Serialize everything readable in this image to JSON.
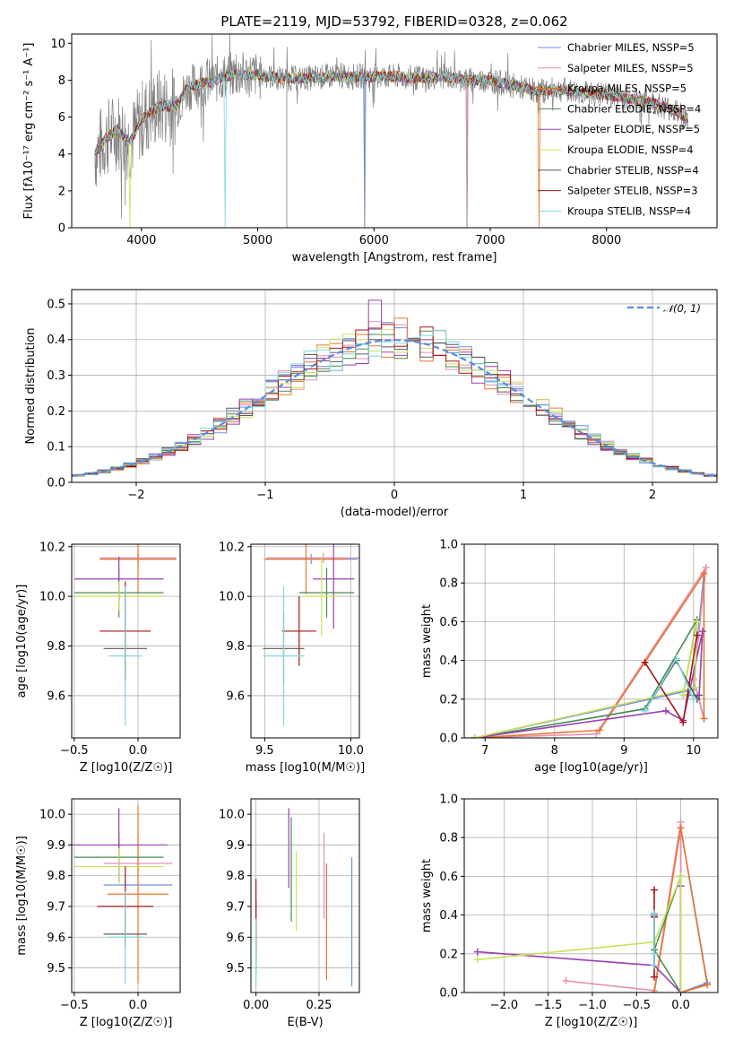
{
  "colors": {
    "Chabrier MILES": "#6b8fe8",
    "Salpeter MILES": "#e58fb6",
    "Kroupa MILES": "#e8772d",
    "Chabrier ELODIE": "#4a8a50",
    "Salpeter ELODIE": "#9a3fb5",
    "Kroupa ELODIE": "#c9e35a",
    "Chabrier STELIB": "#5a5a5a",
    "Salpeter STELIB": "#a51616",
    "Kroupa STELIB": "#7dd7de",
    "data": "#808080",
    "normal": "#5b8bd9"
  },
  "chart_data": [
    {
      "id": "spectrum",
      "type": "line",
      "title": "PLATE=2119, MJD=53792, FIBERID=0328, z=0.062",
      "xlabel": "wavelength [Angstrom, rest frame]",
      "ylabel": "Flux [fλ10⁻¹⁷ erg cm⁻² s⁻¹ A⁻¹]",
      "xlim": [
        3400,
        8950
      ],
      "ylim": [
        0,
        10.5
      ],
      "xticks": [
        "4000",
        "5000",
        "6000",
        "7000",
        "8000"
      ],
      "yticks": [
        "0",
        "2",
        "4",
        "6",
        "8",
        "10"
      ],
      "continuum": [
        [
          3600,
          4.0
        ],
        [
          3700,
          4.9
        ],
        [
          3800,
          5.3
        ],
        [
          3900,
          4.6
        ],
        [
          4000,
          5.9
        ],
        [
          4100,
          6.4
        ],
        [
          4200,
          6.6
        ],
        [
          4300,
          6.6
        ],
        [
          4400,
          7.6
        ],
        [
          4500,
          7.8
        ],
        [
          4600,
          7.9
        ],
        [
          4700,
          8.2
        ],
        [
          4800,
          8.3
        ],
        [
          4900,
          8.3
        ],
        [
          5000,
          8.3
        ],
        [
          5200,
          8.1
        ],
        [
          5400,
          8.1
        ],
        [
          5600,
          8.2
        ],
        [
          5800,
          8.2
        ],
        [
          6000,
          8.2
        ],
        [
          6200,
          8.2
        ],
        [
          6400,
          8.1
        ],
        [
          6600,
          8.2
        ],
        [
          6800,
          8.0
        ],
        [
          7000,
          8.0
        ],
        [
          7200,
          7.7
        ],
        [
          7400,
          7.4
        ],
        [
          7600,
          7.5
        ],
        [
          7800,
          7.3
        ],
        [
          8000,
          7.2
        ],
        [
          8200,
          7.0
        ],
        [
          8400,
          6.8
        ],
        [
          8600,
          6.3
        ],
        [
          8700,
          5.8
        ]
      ],
      "legend": [
        "Chabrier MILES, NSSP=5",
        "Salpeter MILES, NSSP=5",
        "Kroupa MILES, NSSP=5",
        "Chabrier ELODIE, NSSP=4",
        "Salpeter ELODIE, NSSP=5",
        "Kroupa ELODIE, NSSP=4",
        "Chabrier STELIB, NSSP=4",
        "Salpeter STELIB, NSSP=3",
        "Kroupa STELIB, NSSP=4"
      ],
      "legend_position": "right"
    },
    {
      "id": "residuals",
      "type": "line",
      "xlabel": "(data-model)/error",
      "ylabel": "Normed distribution",
      "xlim": [
        -2.5,
        2.5
      ],
      "ylim": [
        0,
        0.54
      ],
      "xticks": [
        "−2",
        "−1",
        "0",
        "1",
        "2"
      ],
      "yticks": [
        "0.0",
        "0.1",
        "0.2",
        "0.3",
        "0.4",
        "0.5"
      ],
      "legend": [
        "𝒩(0, 1)"
      ],
      "legend_position": "upper right",
      "bin_width": 0.1,
      "note_series": "nine step histograms of residuals, one per model",
      "peak_bins": {
        "Salpeter ELODIE": [
          -0.2,
          0.51
        ],
        "Kroupa MILES": [
          0.0,
          0.46
        ],
        "Salpeter MILES": [
          -0.2,
          0.45
        ]
      }
    },
    {
      "id": "age_vs_Z",
      "type": "scatter",
      "xlabel": "Z [log10(Z/Z☉)]",
      "ylabel": "age  [log10(age/yr)]",
      "xlim": [
        -0.52,
        0.33
      ],
      "ylim": [
        9.43,
        10.21
      ],
      "xticks": [
        "−0.5",
        "0.0"
      ],
      "yticks": [
        "9.6",
        "9.8",
        "10.0",
        "10.2"
      ],
      "points": [
        {
          "model": "Chabrier MILES",
          "x": 0.0,
          "xerr": 0.3,
          "y": 10.15,
          "yerr": 0.02
        },
        {
          "model": "Salpeter MILES",
          "x": 0.0,
          "xerr": 0.3,
          "y": 10.155,
          "yerr": 0.02
        },
        {
          "model": "Kroupa MILES",
          "x": 0.0,
          "xerr": 0.3,
          "y": 10.15,
          "yerr": 0.14
        },
        {
          "model": "Chabrier ELODIE",
          "x": -0.15,
          "xerr": 0.35,
          "y": 10.015,
          "yerr": 0.1
        },
        {
          "model": "Salpeter ELODIE",
          "x": -0.15,
          "xerr": 0.35,
          "y": 10.07,
          "yerr": 0.09
        },
        {
          "model": "Kroupa ELODIE",
          "x": -0.15,
          "xerr": 0.35,
          "y": 10.0,
          "yerr": 0.06
        },
        {
          "model": "Chabrier STELIB",
          "x": -0.1,
          "xerr": 0.17,
          "y": 9.79,
          "yerr": 0.1
        },
        {
          "model": "Salpeter STELIB",
          "x": -0.1,
          "xerr": 0.2,
          "y": 9.86,
          "yerr": 0.2
        },
        {
          "model": "Kroupa STELIB",
          "x": -0.1,
          "xerr": 0.13,
          "y": 9.76,
          "yerr": 0.28
        }
      ]
    },
    {
      "id": "age_vs_mass",
      "type": "scatter",
      "xlabel": "mass [log10(M/M☉)]",
      "ylabel": "",
      "xlim": [
        9.42,
        10.05
      ],
      "ylim": [
        9.43,
        10.21
      ],
      "xticks": [
        "9.5",
        "10.0"
      ],
      "yticks": [
        "9.6",
        "9.8",
        "10.0",
        "10.2"
      ],
      "points": [
        {
          "model": "Chabrier MILES",
          "x": 9.77,
          "xerr": 0.27,
          "y": 10.15,
          "yerr": 0.02
        },
        {
          "model": "Salpeter MILES",
          "x": 9.84,
          "xerr": 0.33,
          "y": 10.155,
          "yerr": 0.02
        },
        {
          "model": "Kroupa MILES",
          "x": 9.74,
          "xerr": 0.24,
          "y": 10.15,
          "yerr": 0.14
        },
        {
          "model": "Chabrier ELODIE",
          "x": 9.86,
          "xerr": 0.16,
          "y": 10.015,
          "yerr": 0.1
        },
        {
          "model": "Salpeter ELODIE",
          "x": 9.9,
          "xerr": 0.12,
          "y": 10.07,
          "yerr": 0.2
        },
        {
          "model": "Kroupa ELODIE",
          "x": 9.83,
          "xerr": 0.1,
          "y": 10.0,
          "yerr": 0.16
        },
        {
          "model": "Chabrier STELIB",
          "x": 9.61,
          "xerr": 0.12,
          "y": 9.79,
          "yerr": 0.14
        },
        {
          "model": "Salpeter STELIB",
          "x": 9.7,
          "xerr": 0.1,
          "y": 9.86,
          "yerr": 0.14
        },
        {
          "model": "Kroupa STELIB",
          "x": 9.61,
          "xerr": 0.12,
          "y": 9.76,
          "yerr": 0.28
        }
      ]
    },
    {
      "id": "weight_vs_age",
      "type": "line",
      "xlabel": "age  [log10(age/yr)]",
      "ylabel": "mass weight",
      "xlim": [
        6.7,
        10.35
      ],
      "ylim": [
        0,
        1
      ],
      "xticks": [
        "7",
        "8",
        "9",
        "10"
      ],
      "yticks": [
        "0.0",
        "0.2",
        "0.4",
        "0.6",
        "0.8",
        "1.0"
      ],
      "series": [
        {
          "name": "Chabrier MILES",
          "x": [
            6.85,
            10.0,
            10.15,
            10.0,
            10.15
          ],
          "y": [
            0.0,
            0.25,
            0.85,
            0.3,
            0.1
          ]
        },
        {
          "name": "Salpeter MILES",
          "x": [
            6.85,
            8.6,
            10.18,
            10.0,
            10.15
          ],
          "y": [
            0.0,
            0.02,
            0.88,
            0.3,
            0.1
          ]
        },
        {
          "name": "Kroupa MILES",
          "x": [
            6.85,
            8.65,
            10.15,
            10.15
          ],
          "y": [
            0.0,
            0.04,
            0.85,
            0.1
          ]
        },
        {
          "name": "Chabrier ELODIE",
          "x": [
            6.85,
            9.3,
            10.05,
            9.85,
            10.08
          ],
          "y": [
            0.0,
            0.15,
            0.61,
            0.22,
            0.22
          ]
        },
        {
          "name": "Salpeter ELODIE",
          "x": [
            6.85,
            9.6,
            9.85,
            10.13,
            10.08
          ],
          "y": [
            0.0,
            0.14,
            0.09,
            0.55,
            0.22
          ]
        },
        {
          "name": "Kroupa ELODIE",
          "x": [
            6.85,
            10.02,
            10.05,
            9.85
          ],
          "y": [
            0.0,
            0.26,
            0.6,
            0.22
          ]
        },
        {
          "name": "Chabrier STELIB",
          "x": [
            9.3,
            9.75,
            10.05
          ],
          "y": [
            0.14,
            0.4,
            0.2
          ]
        },
        {
          "name": "Salpeter STELIB",
          "x": [
            9.3,
            9.85,
            10.05
          ],
          "y": [
            0.39,
            0.08,
            0.53
          ]
        },
        {
          "name": "Kroupa STELIB",
          "x": [
            9.3,
            9.75,
            10.0
          ],
          "y": [
            0.14,
            0.41,
            0.2
          ]
        }
      ]
    },
    {
      "id": "mass_vs_Z",
      "type": "scatter",
      "xlabel": "Z [log10(Z/Z☉)]",
      "ylabel": "mass [log10(M/M☉)]",
      "xlim": [
        -0.52,
        0.33
      ],
      "ylim": [
        9.42,
        10.05
      ],
      "xticks": [
        "−0.5",
        "0.0"
      ],
      "yticks": [
        "9.5",
        "9.6",
        "9.7",
        "9.8",
        "9.9",
        "10.0"
      ],
      "points": [
        {
          "model": "Chabrier MILES",
          "x": 0.0,
          "xerr": 0.27,
          "y": 9.77,
          "yerr": 0.0
        },
        {
          "model": "Salpeter MILES",
          "x": 0.0,
          "xerr": 0.27,
          "y": 9.84,
          "yerr": 0.1
        },
        {
          "model": "Kroupa MILES",
          "x": 0.0,
          "xerr": 0.24,
          "y": 9.74,
          "yerr": 0.29
        },
        {
          "model": "Chabrier ELODIE",
          "x": -0.15,
          "xerr": 0.35,
          "y": 9.86,
          "yerr": 0.08
        },
        {
          "model": "Salpeter ELODIE",
          "x": -0.15,
          "xerr": 0.38,
          "y": 9.9,
          "yerr": 0.12
        },
        {
          "model": "Kroupa ELODIE",
          "x": -0.15,
          "xerr": 0.35,
          "y": 9.83,
          "yerr": 0.06
        },
        {
          "model": "Chabrier STELIB",
          "x": -0.1,
          "xerr": 0.17,
          "y": 9.61,
          "yerr": 0.0
        },
        {
          "model": "Salpeter STELIB",
          "x": -0.1,
          "xerr": 0.22,
          "y": 9.7,
          "yerr": 0.13
        },
        {
          "model": "Kroupa STELIB",
          "x": -0.1,
          "xerr": 0.13,
          "y": 9.6,
          "yerr": 0.15
        }
      ]
    },
    {
      "id": "mass_vs_ebv",
      "type": "scatter",
      "xlabel": "E(B-V)",
      "ylabel": "",
      "xlim": [
        -0.02,
        0.41
      ],
      "ylim": [
        9.42,
        10.05
      ],
      "xticks": [
        "0.00",
        "0.25"
      ],
      "yticks": [
        "9.5",
        "9.6",
        "9.7",
        "9.8",
        "9.9",
        "10.0"
      ],
      "points": [
        {
          "model": "Chabrier MILES",
          "x": 0.38,
          "y": 9.65,
          "yerr": 0.21
        },
        {
          "model": "Salpeter MILES",
          "x": 0.27,
          "y": 9.8,
          "yerr": 0.14
        },
        {
          "model": "Kroupa MILES",
          "x": 0.28,
          "y": 9.65,
          "yerr": 0.19
        },
        {
          "model": "Chabrier ELODIE",
          "x": 0.14,
          "y": 9.82,
          "yerr": 0.17
        },
        {
          "model": "Salpeter ELODIE",
          "x": 0.13,
          "y": 9.89,
          "yerr": 0.13
        },
        {
          "model": "Kroupa ELODIE",
          "x": 0.16,
          "y": 9.75,
          "yerr": 0.13
        },
        {
          "model": "Chabrier STELIB",
          "x": 0.0,
          "y": 9.6,
          "yerr": 0.12
        },
        {
          "model": "Salpeter STELIB",
          "x": 0.0,
          "y": 9.66,
          "yerr": 0.13
        },
        {
          "model": "Kroupa STELIB",
          "x": 0.0,
          "y": 9.55,
          "yerr": 0.11
        }
      ]
    },
    {
      "id": "weight_vs_Z",
      "type": "line",
      "xlabel": "Z [log10(Z/Z☉)]",
      "ylabel": "mass weight",
      "xlim": [
        -2.45,
        0.42
      ],
      "ylim": [
        0,
        1
      ],
      "xticks": [
        "−2.0",
        "−1.5",
        "−1.0",
        "−0.5",
        "0.0"
      ],
      "yticks": [
        "0.0",
        "0.2",
        "0.4",
        "0.6",
        "0.8",
        "1.0"
      ],
      "series": [
        {
          "name": "Chabrier MILES",
          "x": [
            0.0,
            0.3,
            0.0,
            0.0
          ],
          "y": [
            0.0,
            0.05,
            0.85,
            0.55
          ]
        },
        {
          "name": "Salpeter MILES",
          "x": [
            -1.3,
            -0.3,
            0.0,
            0.0,
            0.3
          ],
          "y": [
            0.06,
            0.01,
            0.88,
            0.0,
            0.04
          ]
        },
        {
          "name": "Kroupa MILES",
          "x": [
            -0.3,
            0.0,
            0.3,
            0.0
          ],
          "y": [
            0.0,
            0.85,
            0.04,
            0.0
          ]
        },
        {
          "name": "Chabrier ELODIE",
          "x": [
            -0.3,
            0.0,
            0.0,
            -0.3
          ],
          "y": [
            0.22,
            0.6,
            0.0,
            0.22
          ]
        },
        {
          "name": "Salpeter ELODIE",
          "x": [
            -2.3,
            -0.3,
            0.0,
            0.0
          ],
          "y": [
            0.21,
            0.14,
            0.0,
            0.55
          ]
        },
        {
          "name": "Kroupa ELODIE",
          "x": [
            -2.3,
            -0.3,
            0.0,
            0.0
          ],
          "y": [
            0.17,
            0.26,
            0.6,
            0.0
          ]
        },
        {
          "name": "Chabrier STELIB",
          "x": [
            -0.3,
            -0.3,
            -0.3
          ],
          "y": [
            0.4,
            0.2,
            0.14
          ]
        },
        {
          "name": "Salpeter STELIB",
          "x": [
            -0.3,
            -0.3,
            -0.3
          ],
          "y": [
            0.53,
            0.08,
            0.39
          ]
        },
        {
          "name": "Kroupa STELIB",
          "x": [
            -0.3,
            -0.3,
            -0.3
          ],
          "y": [
            0.41,
            0.2,
            0.14
          ]
        }
      ]
    }
  ]
}
